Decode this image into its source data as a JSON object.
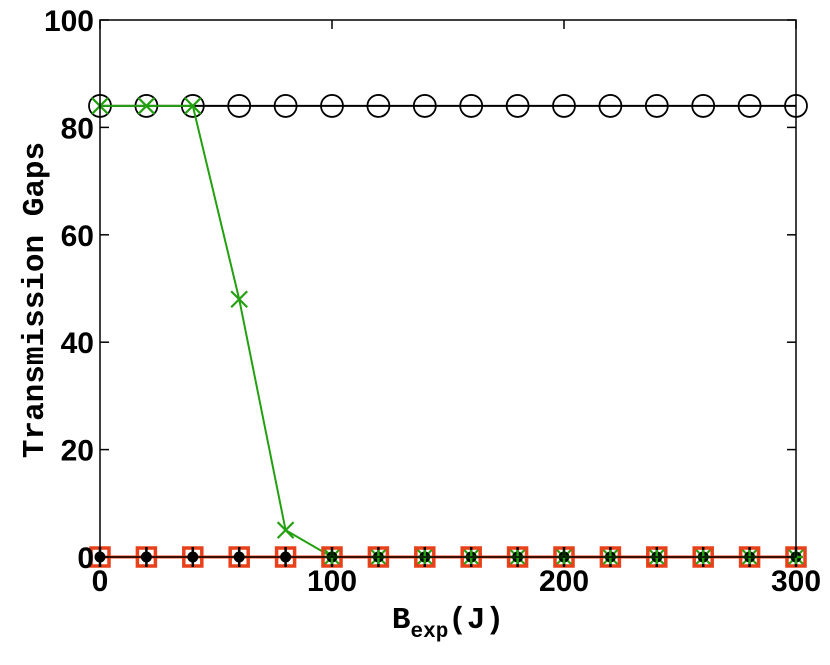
{
  "chart_data": {
    "type": "line",
    "xlabel_main": "B",
    "xlabel_sub": "exp",
    "xlabel_rest": "(J)",
    "ylabel": "Transmission Gaps",
    "xlim": [
      0,
      300
    ],
    "ylim": [
      0,
      100
    ],
    "xticks": [
      0,
      100,
      200,
      300
    ],
    "yticks": [
      0,
      20,
      40,
      60,
      80,
      100
    ],
    "grid": false,
    "x": [
      0,
      20,
      40,
      60,
      80,
      100,
      120,
      140,
      160,
      180,
      200,
      220,
      240,
      260,
      280,
      300
    ],
    "series": [
      {
        "marker": "circle",
        "color": "#000000",
        "values": [
          84,
          84,
          84,
          84,
          84,
          84,
          84,
          84,
          84,
          84,
          84,
          84,
          84,
          84,
          84,
          84
        ]
      },
      {
        "marker": "x",
        "color": "#22a00f",
        "values": [
          84,
          84,
          84,
          48,
          5,
          0,
          0,
          0,
          0,
          0,
          0,
          0,
          0,
          0,
          0,
          0
        ]
      },
      {
        "marker": "square",
        "color": "#e8401a",
        "values": [
          0,
          0,
          0,
          0,
          0,
          0,
          0,
          0,
          0,
          0,
          0,
          0,
          0,
          0,
          0,
          0
        ]
      },
      {
        "marker": "dot-errorbar",
        "color": "#000000",
        "values": [
          0,
          0,
          0,
          0,
          0,
          0,
          0,
          0,
          0,
          0,
          0,
          0,
          0,
          0,
          0,
          0
        ]
      },
      {
        "marker": "plus",
        "color": "#22a00f",
        "values": [
          null,
          null,
          null,
          null,
          null,
          0,
          0,
          0,
          0,
          0,
          0,
          0,
          0,
          0,
          0,
          0
        ]
      }
    ]
  }
}
